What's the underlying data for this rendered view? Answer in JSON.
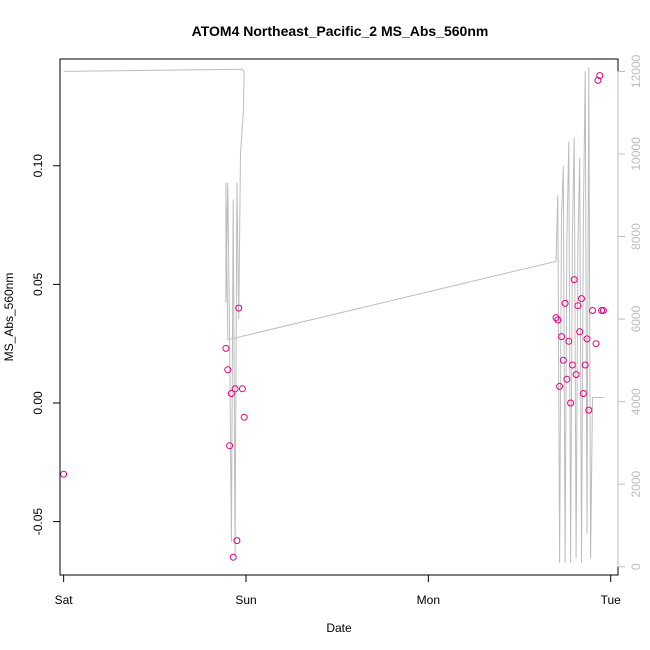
{
  "chart_data": {
    "type": "scatter",
    "title": "ATOM4 Northeast_Pacific_2 MS_Abs_560nm",
    "xlabel": "Date",
    "ylabel": "MS_Abs_560nm",
    "x_ticks": [
      "Sat",
      "Sun",
      "Mon",
      "Tue"
    ],
    "y_ticks": [
      "-0.05",
      "0.00",
      "0.05",
      "0.10"
    ],
    "y2_ticks": [
      "0",
      "2000",
      "4000",
      "6000",
      "8000",
      "10000",
      "12000"
    ],
    "xlim": [
      -0.02,
      3.04
    ],
    "ylim": [
      -0.0725,
      0.145
    ],
    "y2lim": [
      -200,
      12300
    ],
    "grid": false,
    "colors": {
      "points": "#e6007e",
      "line": "#bdbdbd",
      "axis": "#000000",
      "axis_right": "#bdbdbd"
    },
    "series": [
      {
        "kind": "points",
        "x": [
          0.0,
          0.89,
          0.9,
          0.91,
          0.92,
          0.93,
          0.94,
          0.95,
          0.96,
          0.98,
          0.99,
          2.7,
          2.71,
          2.72,
          2.73,
          2.74,
          2.75,
          2.76,
          2.77,
          2.78,
          2.79,
          2.8,
          2.81,
          2.82,
          2.83,
          2.84,
          2.85,
          2.86,
          2.87,
          2.88,
          2.9,
          2.92,
          2.93,
          2.94,
          2.95,
          2.96
        ],
        "y": [
          -0.03,
          0.023,
          0.014,
          -0.018,
          0.004,
          -0.065,
          0.006,
          -0.058,
          0.04,
          0.006,
          -0.006,
          0.036,
          0.035,
          0.007,
          0.028,
          0.018,
          0.042,
          0.01,
          0.026,
          0.0,
          0.016,
          0.052,
          0.012,
          0.041,
          0.03,
          0.044,
          0.004,
          0.016,
          0.027,
          -0.003,
          0.039,
          0.025,
          0.136,
          0.138,
          0.039,
          0.039
        ]
      },
      {
        "kind": "line",
        "x": [
          0.0,
          0.98,
          0.99,
          0.985,
          0.97,
          0.96,
          0.95,
          0.94,
          0.93,
          0.92,
          0.91,
          0.9,
          0.89,
          0.89,
          0.9,
          2.7,
          2.71,
          2.72,
          2.73,
          2.74,
          2.75,
          2.76,
          2.77,
          2.78,
          2.79,
          2.8,
          2.81,
          2.82,
          2.83,
          2.84,
          2.85,
          2.86,
          2.87,
          2.88,
          2.89,
          2.9,
          2.91,
          2.92,
          2.93,
          2.94,
          2.95,
          2.96
        ],
        "y2": [
          12000,
          12050,
          12000,
          11000,
          10000,
          6000,
          9300,
          300,
          8900,
          600,
          5500,
          9300,
          6400,
          9300,
          5500,
          7400,
          9000,
          100,
          8500,
          9700,
          100,
          8000,
          10300,
          100,
          8100,
          10400,
          200,
          7800,
          9900,
          100,
          8500,
          12000,
          800,
          12100,
          200,
          4100,
          4100,
          4100,
          4100,
          4100,
          4100,
          4100
        ]
      }
    ]
  }
}
